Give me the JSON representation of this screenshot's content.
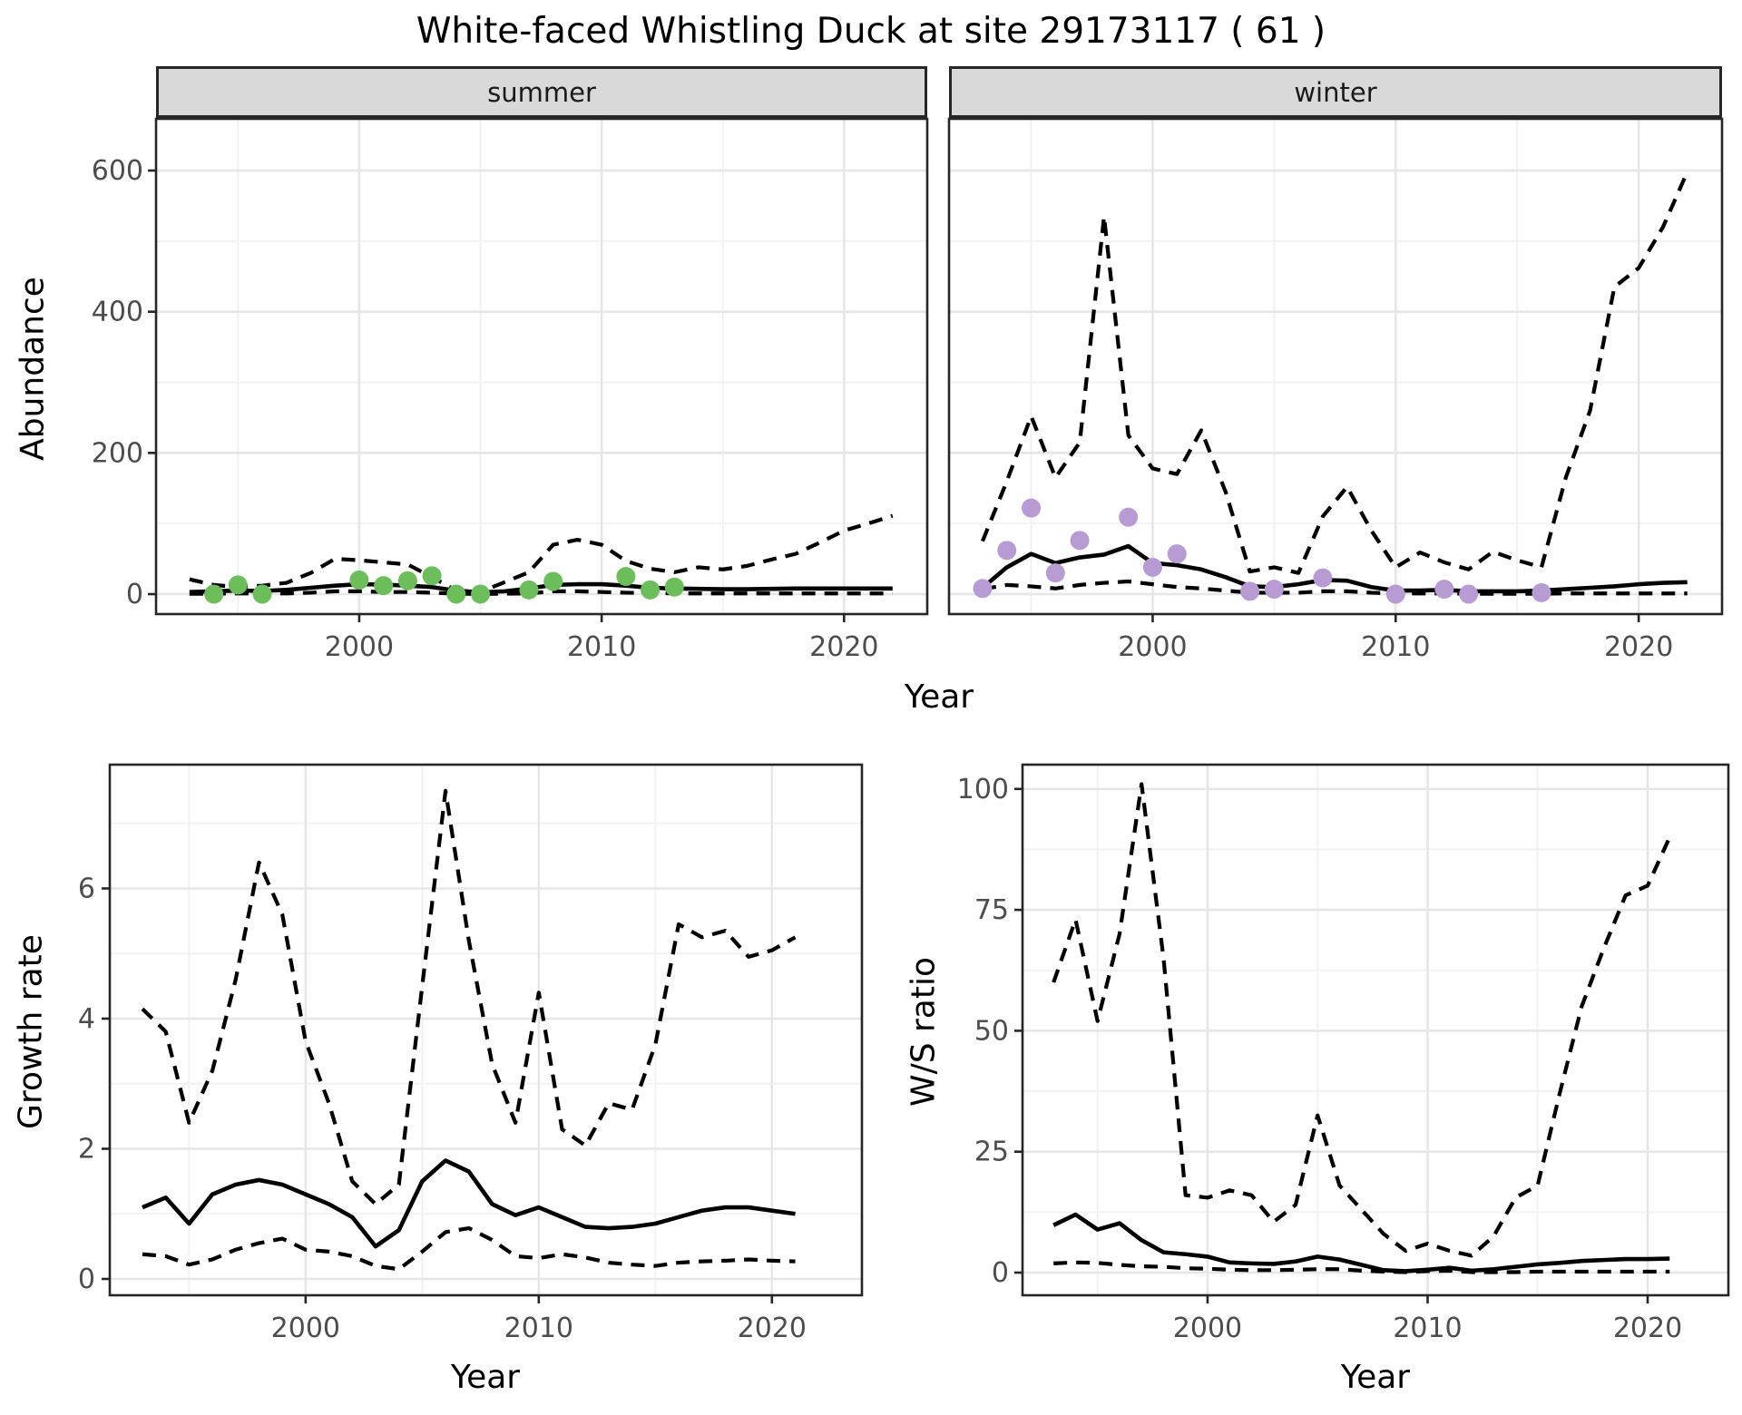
{
  "title": "White-faced Whistling Duck at site 29173117 ( 61 )",
  "colors": {
    "observed_summer": "#6CBE5A",
    "observed_winter": "#B69CD2",
    "line": "#000000",
    "strip_fill": "#D9D9D9",
    "panel_border": "#262626",
    "grid_major": "#E6E6E6",
    "grid_minor": "#F2F2F2",
    "tick_text": "#4D4D4D"
  },
  "chart_data": [
    {
      "id": "abundance-summer",
      "type": "line",
      "facet_label": "summer",
      "xlabel": "Year",
      "ylabel": "Abundance",
      "xlim": [
        1991.62,
        2023.43
      ],
      "ylim": [
        -28,
        673
      ],
      "x_ticks": [
        2000,
        2010,
        2020
      ],
      "x_minor": [
        1995,
        2005,
        2015
      ],
      "y_ticks": [
        0,
        200,
        400,
        600
      ],
      "y_minor": [
        100,
        300,
        500
      ],
      "grid": true,
      "legend": "none",
      "series": [
        {
          "name": "lower_ci",
          "style": "dashed",
          "x": [
            1993,
            1994,
            1995,
            1996,
            1997,
            1998,
            1999,
            2000,
            2001,
            2002,
            2003,
            2004,
            2005,
            2006,
            2007,
            2008,
            2009,
            2010,
            2011,
            2012,
            2013,
            2014,
            2015,
            2016,
            2017,
            2018,
            2019,
            2020,
            2021,
            2022
          ],
          "y": [
            0.5,
            0.5,
            1,
            1,
            1,
            2,
            4,
            4,
            3,
            3,
            2,
            0.5,
            0.3,
            0.5,
            1,
            4,
            4,
            3,
            2,
            1.5,
            1,
            1,
            1,
            1,
            1,
            1,
            1,
            1,
            1,
            1
          ]
        },
        {
          "name": "upper_ci",
          "style": "dashed",
          "x": [
            1993,
            1994,
            1995,
            1996,
            1997,
            1998,
            1999,
            2000,
            2001,
            2002,
            2003,
            2004,
            2005,
            2006,
            2007,
            2008,
            2009,
            2010,
            2011,
            2012,
            2013,
            2014,
            2015,
            2016,
            2017,
            2018,
            2019,
            2020,
            2021,
            2022
          ],
          "y": [
            21,
            13,
            10,
            12,
            16,
            30,
            50,
            48,
            45,
            42,
            24,
            5,
            3,
            17,
            31,
            70,
            77,
            70,
            47,
            36,
            31,
            38,
            35,
            40,
            49,
            57,
            73,
            90,
            100,
            111
          ]
        },
        {
          "name": "modelled_mean",
          "style": "solid",
          "x": [
            1993,
            1994,
            1995,
            1996,
            1997,
            1998,
            1999,
            2000,
            2001,
            2002,
            2003,
            2004,
            2005,
            2006,
            2007,
            2008,
            2009,
            2010,
            2011,
            2012,
            2013,
            2014,
            2015,
            2016,
            2017,
            2018,
            2019,
            2020,
            2021,
            2022
          ],
          "y": [
            3,
            4,
            5,
            4.5,
            6,
            9,
            12,
            14,
            13.5,
            12,
            10,
            5,
            2.5,
            4,
            8,
            13,
            14,
            14,
            12,
            9,
            8,
            7.5,
            7,
            7,
            7.5,
            8,
            8,
            8,
            8,
            8
          ]
        },
        {
          "name": "observed_counts",
          "style": "points",
          "color": "#6CBE5A",
          "x": [
            1994,
            1995,
            1996,
            2000,
            2001,
            2002,
            2003,
            2004,
            2005,
            2007,
            2008,
            2011,
            2012,
            2013
          ],
          "y": [
            0,
            13,
            0,
            20,
            12,
            19,
            26,
            0,
            0,
            6,
            18,
            25,
            6,
            10
          ]
        }
      ]
    },
    {
      "id": "abundance-winter",
      "type": "line",
      "facet_label": "winter",
      "xlabel": "Year",
      "ylabel": "Abundance",
      "xlim": [
        1991.62,
        2023.43
      ],
      "ylim": [
        -28,
        673
      ],
      "x_ticks": [
        2000,
        2010,
        2020
      ],
      "x_minor": [
        1995,
        2005,
        2015
      ],
      "y_ticks": [
        0,
        200,
        400,
        600
      ],
      "y_minor": [
        100,
        300,
        500
      ],
      "grid": true,
      "legend": "none",
      "series": [
        {
          "name": "lower_ci",
          "style": "dashed",
          "x": [
            1993,
            1994,
            1995,
            1996,
            1997,
            1998,
            1999,
            2000,
            2001,
            2002,
            2003,
            2004,
            2005,
            2006,
            2007,
            2008,
            2009,
            2010,
            2011,
            2012,
            2013,
            2014,
            2015,
            2016,
            2017,
            2018,
            2019,
            2020,
            2021,
            2022
          ],
          "y": [
            7,
            13,
            11,
            8,
            13,
            16,
            18,
            14,
            10,
            8,
            5,
            2,
            2,
            2,
            4,
            4,
            2,
            1,
            1,
            1,
            0.5,
            0.5,
            0.5,
            0.5,
            1,
            1,
            1,
            1,
            1,
            1
          ]
        },
        {
          "name": "upper_ci",
          "style": "dashed",
          "x": [
            1993,
            1994,
            1995,
            1996,
            1997,
            1998,
            1999,
            2000,
            2001,
            2002,
            2003,
            2004,
            2005,
            2006,
            2007,
            2008,
            2009,
            2010,
            2011,
            2012,
            2013,
            2014,
            2015,
            2016,
            2017,
            2018,
            2019,
            2020,
            2021,
            2022
          ],
          "y": [
            75,
            160,
            252,
            165,
            215,
            535,
            225,
            178,
            170,
            232,
            145,
            32,
            38,
            30,
            110,
            152,
            90,
            38,
            59,
            45,
            35,
            60,
            48,
            38,
            165,
            260,
            435,
            462,
            520,
            598
          ]
        },
        {
          "name": "modelled_mean",
          "style": "solid",
          "x": [
            1993,
            1994,
            1995,
            1996,
            1997,
            1998,
            1999,
            2000,
            2001,
            2002,
            2003,
            2004,
            2005,
            2006,
            2007,
            2008,
            2009,
            2010,
            2011,
            2012,
            2013,
            2014,
            2015,
            2016,
            2017,
            2018,
            2019,
            2020,
            2021,
            2022
          ],
          "y": [
            9,
            38,
            57,
            44,
            52,
            56,
            68,
            44,
            41,
            35,
            24,
            11,
            10,
            14,
            20,
            19,
            10,
            5,
            5,
            6,
            4,
            4,
            4,
            5,
            7,
            9,
            11,
            14,
            16,
            17
          ]
        },
        {
          "name": "observed_counts",
          "style": "points",
          "color": "#B69CD2",
          "x": [
            1993,
            1994,
            1995,
            1996,
            1997,
            1999,
            2000,
            2001,
            2004,
            2005,
            2007,
            2010,
            2012,
            2013,
            2016
          ],
          "y": [
            8,
            62,
            122,
            30,
            76,
            109,
            38,
            57,
            4,
            7,
            23,
            0,
            7,
            0,
            2
          ]
        }
      ]
    },
    {
      "id": "growth-rate",
      "type": "line",
      "facet_label": "",
      "xlabel": "Year",
      "ylabel": "Growth rate",
      "xlim": [
        1991.6,
        2023.86
      ],
      "ylim": [
        -0.25,
        7.9
      ],
      "x_ticks": [
        2000,
        2010,
        2020
      ],
      "x_minor": [
        1995,
        2005,
        2015
      ],
      "y_ticks": [
        0,
        2,
        4,
        6
      ],
      "y_minor": [
        1,
        3,
        5,
        7
      ],
      "grid": true,
      "legend": "none",
      "series": [
        {
          "name": "lower_ci",
          "style": "dashed",
          "x": [
            1993,
            1994,
            1995,
            1996,
            1997,
            1998,
            1999,
            2000,
            2001,
            2002,
            2003,
            2004,
            2005,
            2006,
            2007,
            2008,
            2009,
            2010,
            2011,
            2012,
            2013,
            2014,
            2015,
            2016,
            2017,
            2018,
            2019,
            2020,
            2021
          ],
          "y": [
            0.38,
            0.35,
            0.22,
            0.3,
            0.45,
            0.55,
            0.62,
            0.45,
            0.42,
            0.35,
            0.2,
            0.15,
            0.42,
            0.72,
            0.78,
            0.6,
            0.35,
            0.32,
            0.38,
            0.33,
            0.25,
            0.22,
            0.2,
            0.25,
            0.27,
            0.28,
            0.3,
            0.28,
            0.27
          ]
        },
        {
          "name": "upper_ci",
          "style": "dashed",
          "x": [
            1993,
            1994,
            1995,
            1996,
            1997,
            1998,
            1999,
            2000,
            2001,
            2002,
            2003,
            2004,
            2005,
            2006,
            2007,
            2008,
            2009,
            2010,
            2011,
            2012,
            2013,
            2014,
            2015,
            2016,
            2017,
            2018,
            2019,
            2020,
            2021
          ],
          "y": [
            4.15,
            3.8,
            2.4,
            3.2,
            4.6,
            6.4,
            5.6,
            3.65,
            2.7,
            1.5,
            1.15,
            1.45,
            4.5,
            7.5,
            5.2,
            3.3,
            2.4,
            4.4,
            2.3,
            2.05,
            2.7,
            2.6,
            3.6,
            5.45,
            5.25,
            5.35,
            4.95,
            5.05,
            5.25
          ]
        },
        {
          "name": "modelled_mean",
          "style": "solid",
          "x": [
            1993,
            1994,
            1995,
            1996,
            1997,
            1998,
            1999,
            2000,
            2001,
            2002,
            2003,
            2004,
            2005,
            2006,
            2007,
            2008,
            2009,
            2010,
            2011,
            2012,
            2013,
            2014,
            2015,
            2016,
            2017,
            2018,
            2019,
            2020,
            2021
          ],
          "y": [
            1.1,
            1.25,
            0.85,
            1.3,
            1.45,
            1.52,
            1.45,
            1.3,
            1.15,
            0.95,
            0.5,
            0.75,
            1.5,
            1.82,
            1.65,
            1.15,
            0.98,
            1.1,
            0.95,
            0.8,
            0.78,
            0.8,
            0.85,
            0.95,
            1.05,
            1.1,
            1.1,
            1.05,
            1.0
          ]
        }
      ]
    },
    {
      "id": "ws-ratio",
      "type": "line",
      "facet_label": "",
      "xlabel": "Year",
      "ylabel": "W/S ratio",
      "xlim": [
        1991.59,
        2023.67
      ],
      "ylim": [
        -4.7,
        105
      ],
      "x_ticks": [
        2000,
        2010,
        2020
      ],
      "x_minor": [
        1995,
        2005,
        2015
      ],
      "y_ticks": [
        0,
        25,
        50,
        75,
        100
      ],
      "y_minor": [
        12.5,
        37.5,
        62.5,
        87.5
      ],
      "grid": true,
      "legend": "none",
      "series": [
        {
          "name": "lower_ci",
          "style": "dashed",
          "x": [
            1993,
            1994,
            1995,
            1996,
            1997,
            1998,
            1999,
            2000,
            2001,
            2002,
            2003,
            2004,
            2005,
            2006,
            2007,
            2008,
            2009,
            2010,
            2011,
            2012,
            2013,
            2014,
            2015,
            2016,
            2017,
            2018,
            2019,
            2020,
            2021
          ],
          "y": [
            1.9,
            2.1,
            2.0,
            1.6,
            1.3,
            1.2,
            0.9,
            0.8,
            0.6,
            0.5,
            0.5,
            0.6,
            0.7,
            0.7,
            0.4,
            0.2,
            0.1,
            0.3,
            0.4,
            0.1,
            0.1,
            0.1,
            0.2,
            0.2,
            0.2,
            0.2,
            0.2,
            0.2,
            0.2
          ]
        },
        {
          "name": "upper_ci",
          "style": "dashed",
          "x": [
            1993,
            1994,
            1995,
            1996,
            1997,
            1998,
            1999,
            2000,
            2001,
            2002,
            2003,
            2004,
            2005,
            2006,
            2007,
            2008,
            2009,
            2010,
            2011,
            2012,
            2013,
            2014,
            2015,
            2016,
            2017,
            2018,
            2019,
            2020,
            2021
          ],
          "y": [
            60,
            73,
            52,
            70,
            101,
            65,
            16,
            15.5,
            17,
            16,
            10.5,
            14,
            32.5,
            18,
            13,
            8,
            4.5,
            6,
            4.5,
            3.5,
            7.5,
            15.5,
            18,
            37,
            55,
            67,
            78,
            80,
            90
          ]
        },
        {
          "name": "modelled_mean",
          "style": "solid",
          "x": [
            1993,
            1994,
            1995,
            1996,
            1997,
            1998,
            1999,
            2000,
            2001,
            2002,
            2003,
            2004,
            2005,
            2006,
            2007,
            2008,
            2009,
            2010,
            2011,
            2012,
            2013,
            2014,
            2015,
            2016,
            2017,
            2018,
            2019,
            2020,
            2021
          ],
          "y": [
            9.8,
            12,
            8.9,
            10.2,
            6.7,
            4.2,
            3.8,
            3.3,
            2.1,
            1.9,
            1.8,
            2.3,
            3.3,
            2.7,
            1.6,
            0.5,
            0.3,
            0.6,
            1.0,
            0.4,
            0.7,
            1.2,
            1.7,
            2.0,
            2.4,
            2.6,
            2.8,
            2.8,
            2.9
          ]
        }
      ]
    }
  ]
}
